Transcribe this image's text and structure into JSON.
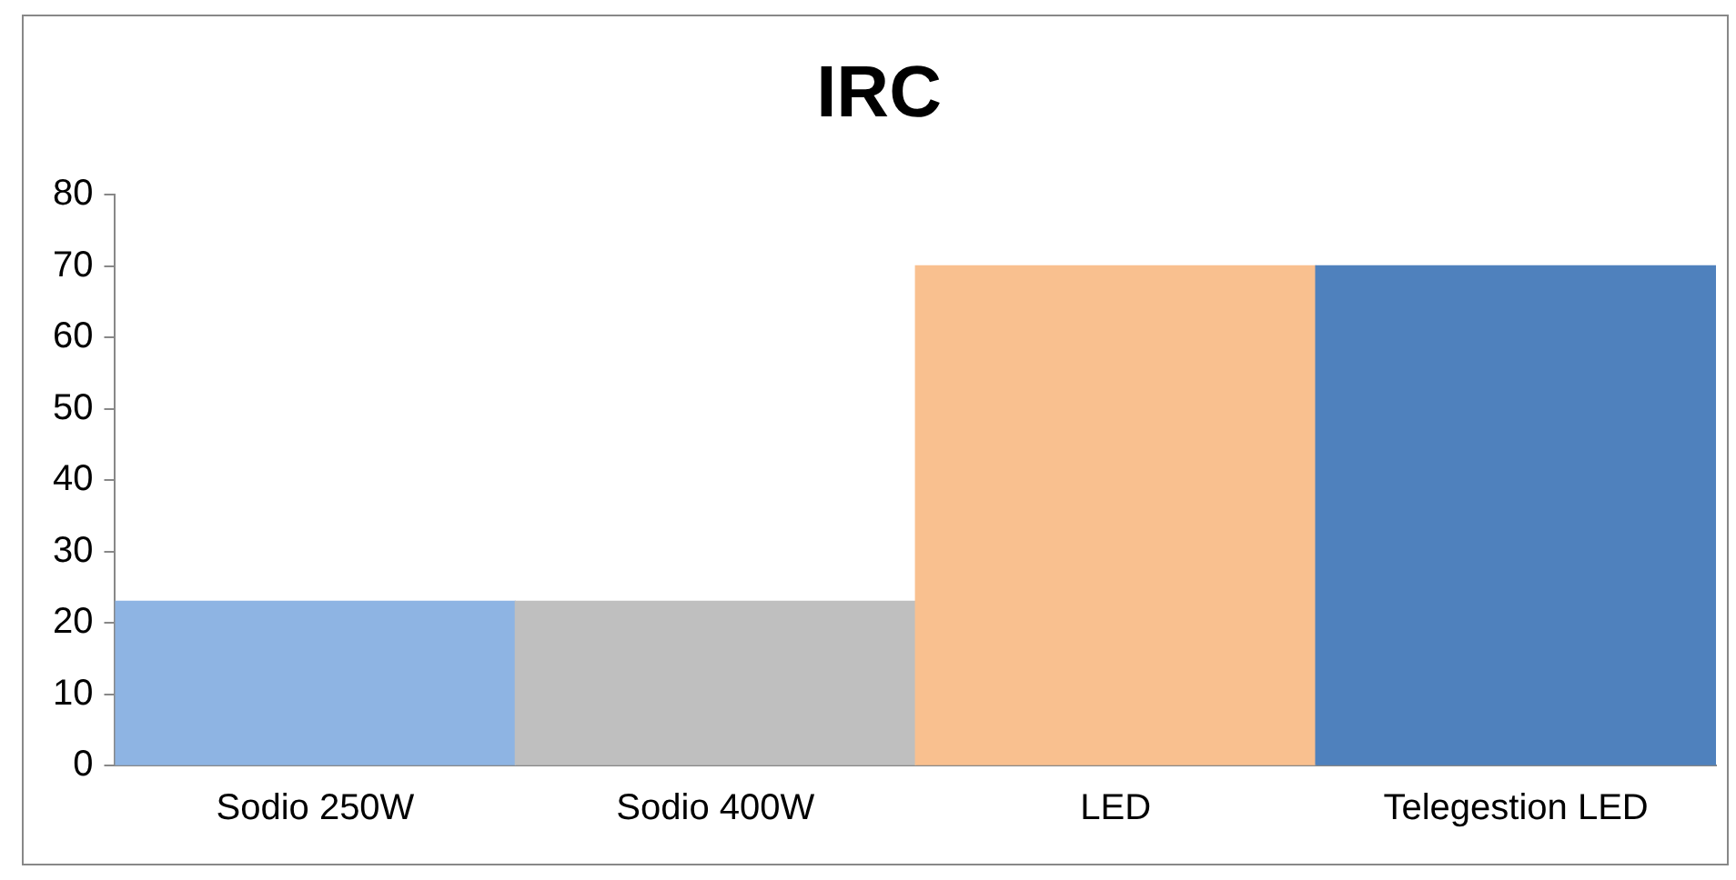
{
  "chart_data": {
    "type": "bar",
    "title": "IRC",
    "categories": [
      "Sodio 250W",
      "Sodio 400W",
      "LED",
      "Telegestion LED"
    ],
    "values": [
      23,
      23,
      70,
      70
    ],
    "colors": [
      "#8eb4e3",
      "#bfbfbf",
      "#f9c08f",
      "#4f81bd"
    ],
    "ylim": [
      0,
      80
    ],
    "yticks": [
      0,
      10,
      20,
      30,
      40,
      50,
      60,
      70,
      80
    ],
    "grid": false,
    "legend": false
  }
}
